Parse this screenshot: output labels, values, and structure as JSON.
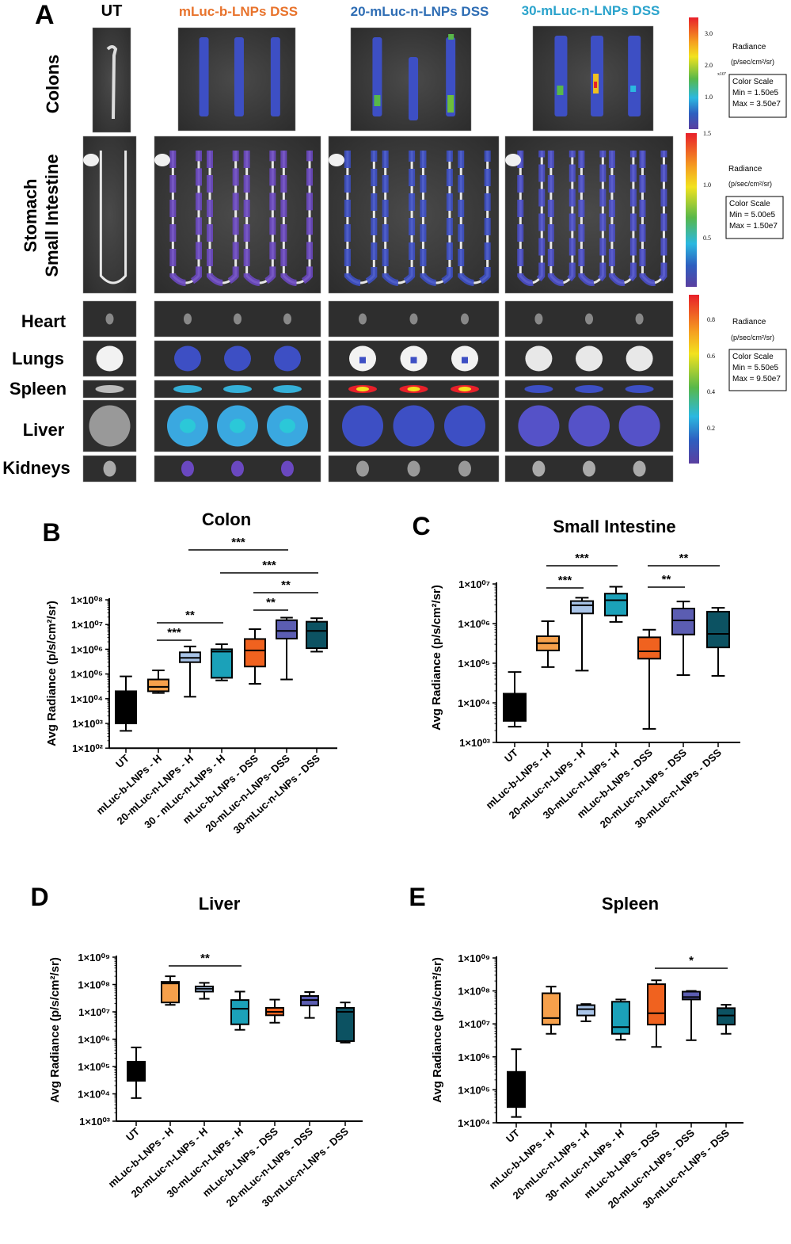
{
  "panel_a": {
    "letter": "A",
    "columns": [
      {
        "label": "UT",
        "color": "#000000"
      },
      {
        "label": "mLuc-b-LNPs DSS",
        "color": "#e8732c"
      },
      {
        "label": "20-mLuc-n-LNPs DSS",
        "color": "#2e6db4"
      },
      {
        "label": "30-mLuc-n-LNPs DSS",
        "color": "#2aa3cc"
      }
    ],
    "rows": {
      "colons": "Colons",
      "stomach": "Stomach",
      "small_intestine": "Small Intestine",
      "heart": "Heart",
      "lungs": "Lungs",
      "spleen": "Spleen",
      "liver": "Liver",
      "kidneys": "Kidneys"
    },
    "color_scales": [
      {
        "radiance": "Radiance",
        "unit": "(p/sec/cm²/sr)",
        "title": "Color Scale",
        "min": "Min = 1.50e5",
        "max": "Max = 3.50e7",
        "ticks": [
          "3.0",
          "2.0",
          "1.0"
        ],
        "multiplier": "x10⁷"
      },
      {
        "radiance": "Radiance",
        "unit": "(p/sec/cm²/sr)",
        "title": "Color Scale",
        "min": "Min = 5.00e5",
        "max": "Max = 1.50e7",
        "ticks": [
          "1.5",
          "1.0",
          "0.5"
        ]
      },
      {
        "radiance": "Radiance",
        "unit": "(p/sec/cm²/sr)",
        "title": "Color Scale",
        "min": "Min = 5.50e5",
        "max": "Max = 9.50e7",
        "ticks": [
          "0.8",
          "0.6",
          "0.4",
          "0.2"
        ]
      }
    ]
  },
  "series_colors": [
    "#000000",
    "#f6a04b",
    "#a9c4e8",
    "#1ba1b9",
    "#f0621f",
    "#5b5db2",
    "#0c5262"
  ],
  "chart_data": [
    {
      "type": "box",
      "letter": "B",
      "title": "Colon",
      "ylabel": "Avg Radiance (p/s/cm²/sr)",
      "yscale": "log",
      "ylim": [
        100,
        100000000
      ],
      "yticks": [
        "1×10⁰⁸",
        "1×10⁰⁷",
        "1×10⁰⁶",
        "1×10⁰⁵",
        "1×10⁰⁴",
        "1×10⁰³",
        "1×10⁰²"
      ],
      "categories": [
        "UT",
        "mLuc-b-LNPs - H",
        "20-mLuc-n-LNPs - H",
        "30 - mLuc-n-LNPs - H",
        "mLuc-b-LNPs - DSS",
        "20-mLuc-n-LNPs- DSS",
        "30-mLuc-n-LNPs - DSS"
      ],
      "boxes": [
        {
          "min": 500,
          "q1": 1000,
          "median": 4000,
          "q3": 20000,
          "max": 80000
        },
        {
          "min": 17000,
          "q1": 20000,
          "median": 30000,
          "q3": 60000,
          "max": 140000
        },
        {
          "min": 12000,
          "q1": 300000,
          "median": 450000,
          "q3": 750000,
          "max": 1300000
        },
        {
          "min": 55000,
          "q1": 70000,
          "median": 800000,
          "q3": 1000000,
          "max": 1600000
        },
        {
          "min": 40000,
          "q1": 200000,
          "median": 900000,
          "q3": 2600000,
          "max": 6500000
        },
        {
          "min": 60000,
          "q1": 2700000,
          "median": 5500000,
          "q3": 15000000,
          "max": 19000000
        },
        {
          "min": 800000,
          "q1": 1100000,
          "median": 5500000,
          "q3": 13000000,
          "max": 18000000
        }
      ],
      "significance": [
        {
          "from": 2,
          "to": 5,
          "label": "***"
        },
        {
          "from": 3,
          "to": 6,
          "label": "***"
        },
        {
          "from": 4,
          "to": 6,
          "label": "**"
        },
        {
          "from": 4,
          "to": 5,
          "label": "**"
        },
        {
          "from": 1,
          "to": 3,
          "label": "**"
        },
        {
          "from": 1,
          "to": 2,
          "label": "***"
        }
      ]
    },
    {
      "type": "box",
      "letter": "C",
      "title": "Small Intestine",
      "ylabel": "Avg Radiance (p/s/cm²/sr)",
      "yscale": "log",
      "ylim": [
        1000,
        10000000
      ],
      "yticks": [
        "1×10⁰⁷",
        "1×10⁰⁶",
        "1×10⁰⁵",
        "1×10⁰⁴",
        "1×10⁰³"
      ],
      "categories": [
        "UT",
        "mLuc-b-LNPs - H",
        "20-mLuc-n-LNPs - H",
        "30-mLuc-n-LNPs - H",
        "mLuc-b-LNPs - DSS",
        "20-mLuc-n-LNPs - DSS",
        "30-mLuc-n-LNPs - DSS"
      ],
      "boxes": [
        {
          "min": 2500,
          "q1": 3500,
          "median": 8000,
          "q3": 17000,
          "max": 60000
        },
        {
          "min": 80000,
          "q1": 210000,
          "median": 320000,
          "q3": 480000,
          "max": 1150000
        },
        {
          "min": 65000,
          "q1": 1800000,
          "median": 2900000,
          "q3": 3700000,
          "max": 4500000
        },
        {
          "min": 1100000,
          "q1": 1600000,
          "median": 3900000,
          "q3": 5700000,
          "max": 8500000
        },
        {
          "min": 2200,
          "q1": 130000,
          "median": 200000,
          "q3": 450000,
          "max": 700000
        },
        {
          "min": 50000,
          "q1": 530000,
          "median": 1200000,
          "q3": 2400000,
          "max": 3600000
        },
        {
          "min": 48000,
          "q1": 250000,
          "median": 550000,
          "q3": 2000000,
          "max": 2500000
        }
      ],
      "significance": [
        {
          "from": 1,
          "to": 3,
          "label": "***"
        },
        {
          "from": 1,
          "to": 2,
          "label": "***"
        },
        {
          "from": 4,
          "to": 6,
          "label": "**"
        },
        {
          "from": 4,
          "to": 5,
          "label": "**"
        }
      ]
    },
    {
      "type": "box",
      "letter": "D",
      "title": "Liver",
      "ylabel": "Avg Radiance (p/s/cm²/sr)",
      "yscale": "log",
      "ylim": [
        1000,
        1000000000
      ],
      "yticks": [
        "1×10⁰⁹",
        "1×10⁰⁸",
        "1×10⁰⁷",
        "1×10⁰⁶",
        "1×10⁰⁵",
        "1×10⁰⁴",
        "1×10⁰³"
      ],
      "categories": [
        "UT",
        "mLuc-b-LNPs - H",
        "20-mLuc-n-LNPs - H",
        "30-mLuc-n-LNPs - H",
        "mLuc-b-LNPs - DSS",
        "20-mLuc-n-LNPs - DSS",
        "30-mLuc-n-LNPs - DSS"
      ],
      "boxes": [
        {
          "min": 7000,
          "q1": 30000,
          "median": 70000,
          "q3": 150000,
          "max": 500000
        },
        {
          "min": 18000000,
          "q1": 22000000,
          "median": 110000000,
          "q3": 125000000,
          "max": 200000000
        },
        {
          "min": 30000000,
          "q1": 55000000,
          "median": 70000000,
          "q3": 85000000,
          "max": 115000000
        },
        {
          "min": 2200000,
          "q1": 3500000,
          "median": 13000000,
          "q3": 27000000,
          "max": 55000000
        },
        {
          "min": 4000000,
          "q1": 7500000,
          "median": 10000000,
          "q3": 14000000,
          "max": 28000000
        },
        {
          "min": 6000000,
          "q1": 17000000,
          "median": 27000000,
          "q3": 38000000,
          "max": 53000000
        },
        {
          "min": 750000,
          "q1": 850000,
          "median": 10000000,
          "q3": 14000000,
          "max": 22000000
        }
      ],
      "significance": [
        {
          "from": 1,
          "to": 3,
          "label": "**"
        }
      ]
    },
    {
      "type": "box",
      "letter": "E",
      "title": "Spleen",
      "ylabel": "Avg Radiance (p/s/cm²/sr)",
      "yscale": "log",
      "ylim": [
        10000,
        1000000000
      ],
      "yticks": [
        "1×10⁰⁹",
        "1×10⁰⁸",
        "1×10⁰⁷",
        "1×10⁰⁶",
        "1×10⁰⁵",
        "1×10⁰⁴"
      ],
      "categories": [
        "UT",
        "mLuc-b-LNPs - H",
        "20-mLuc-n-LNPs - H",
        "30- mLuc-n-LNPs - H",
        "mLuc-b-LNPs - DSS",
        "20-mLuc-n-LNPs - DSS",
        "30-mLuc-n-LNPs - DSS"
      ],
      "boxes": [
        {
          "min": 15000,
          "q1": 30000,
          "median": 100000,
          "q3": 350000,
          "max": 1700000
        },
        {
          "min": 5000000,
          "q1": 9500000,
          "median": 15000000,
          "q3": 85000000,
          "max": 135000000
        },
        {
          "min": 12000000,
          "q1": 18000000,
          "median": 28000000,
          "q3": 37000000,
          "max": 40000000
        },
        {
          "min": 3300000,
          "q1": 5000000,
          "median": 8000000,
          "q3": 47000000,
          "max": 55000000
        },
        {
          "min": 2000000,
          "q1": 9500000,
          "median": 21000000,
          "q3": 160000000,
          "max": 210000000
        },
        {
          "min": 3200000,
          "q1": 55000000,
          "median": 65000000,
          "q3": 95000000,
          "max": 100000000
        },
        {
          "min": 5000000,
          "q1": 9500000,
          "median": 18000000,
          "q3": 30000000,
          "max": 38000000
        }
      ],
      "significance": [
        {
          "from": 4,
          "to": 6,
          "label": "*"
        }
      ]
    }
  ]
}
